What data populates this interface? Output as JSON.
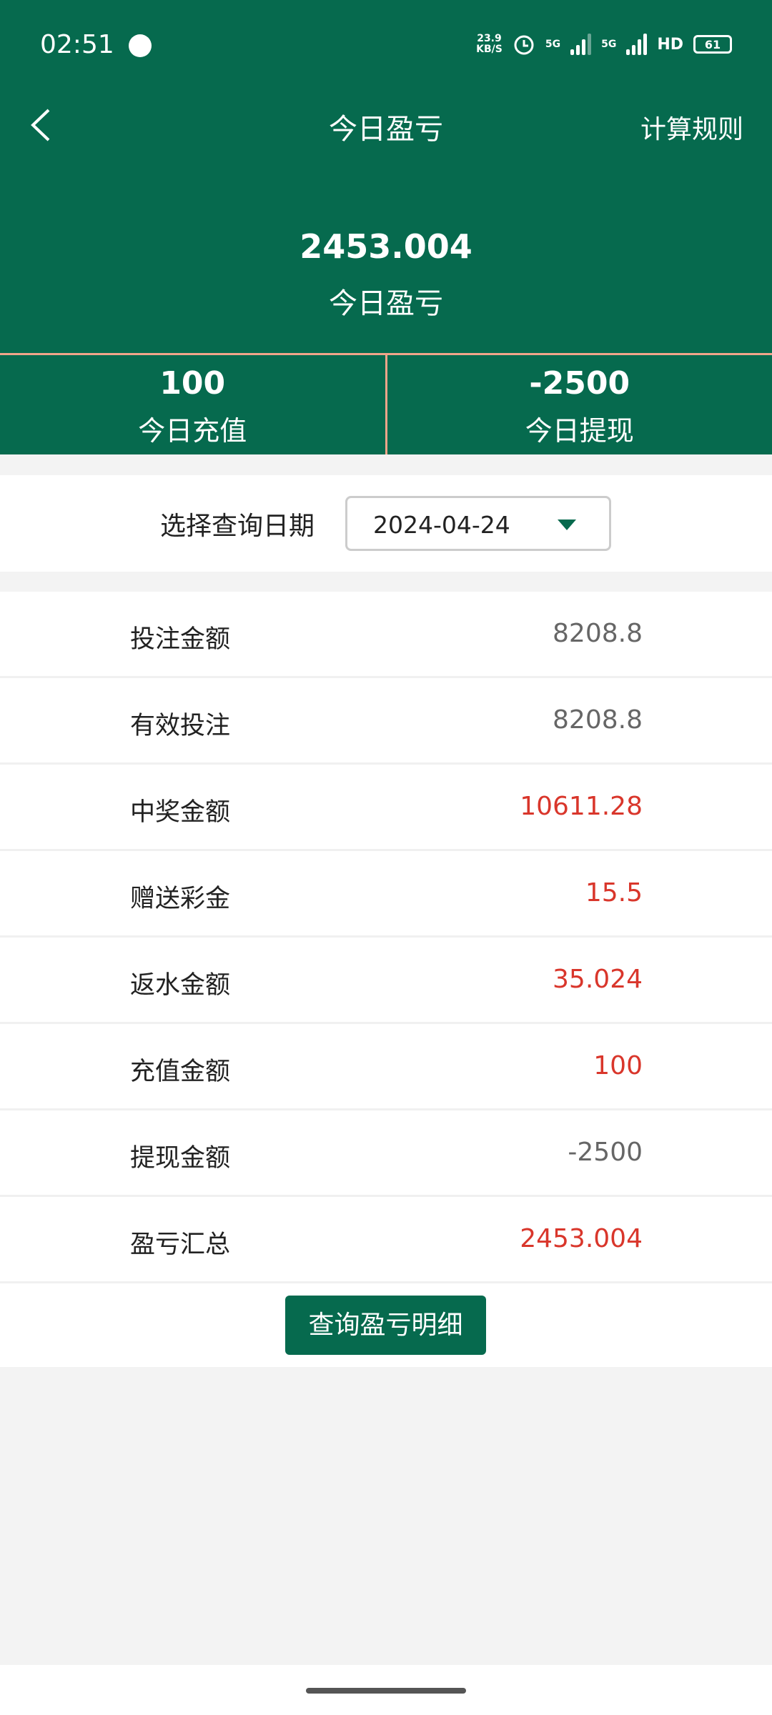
{
  "status_bar": {
    "time": "02:51",
    "speed": "23.9",
    "speed_unit": "KB/S",
    "net1": "5G",
    "net2": "5G",
    "hd": "HD",
    "battery": "61"
  },
  "header": {
    "title": "今日盈亏",
    "rules": "计算规则",
    "amount": "2453.004",
    "amount_label": "今日盈亏"
  },
  "stats": [
    {
      "value": "100",
      "label": "今日充值"
    },
    {
      "value": "-2500",
      "label": "今日提现"
    }
  ],
  "date": {
    "label": "选择查询日期",
    "value": "2024-04-24"
  },
  "rows": [
    {
      "label": "投注金额",
      "value": "8208.8",
      "color": "#666666"
    },
    {
      "label": "有效投注",
      "value": "8208.8",
      "color": "#666666"
    },
    {
      "label": "中奖金额",
      "value": "10611.28",
      "color": "#d9362b"
    },
    {
      "label": "赠送彩金",
      "value": "15.5",
      "color": "#d9362b"
    },
    {
      "label": "返水金额",
      "value": "35.024",
      "color": "#d9362b"
    },
    {
      "label": "充值金额",
      "value": "100",
      "color": "#d9362b"
    },
    {
      "label": "提现金额",
      "value": "-2500",
      "color": "#666666"
    },
    {
      "label": "盈亏汇总",
      "value": "2453.004",
      "color": "#d9362b"
    }
  ],
  "button": "查询盈亏明细",
  "colors": {
    "brand": "#066a4e",
    "divider": "#f0a58a"
  }
}
